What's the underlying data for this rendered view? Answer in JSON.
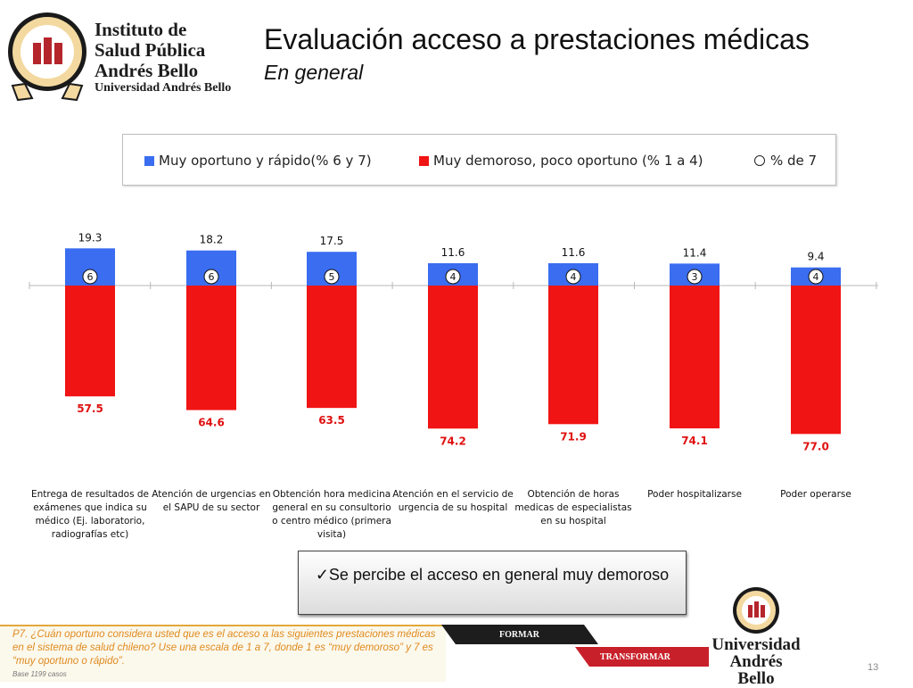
{
  "header": {
    "logo_lines": [
      "Instituto de",
      "Salud Pública",
      "Andrés Bello"
    ],
    "logo_subtitle": "Universidad Andrés Bello",
    "title": "Evaluación acceso a prestaciones médicas",
    "subtitle": "En general"
  },
  "legend": {
    "series_a": "Muy oportuno y rápido(% 6 y 7)",
    "series_b": "Muy demoroso, poco oportuno (% 1 a 4)",
    "series_c": "% de 7"
  },
  "colors": {
    "positive": "#3a6df0",
    "negative": "#f01414",
    "neg_label": "#e01010"
  },
  "chart_data": {
    "type": "bar",
    "categories": [
      "Entrega de resultados de exámenes que indica su médico (Ej. laboratorio, radiografías etc)",
      "Atención de urgencias en el SAPU de su sector",
      "Obtención hora medicina general en su consultorio o centro médico (primera visita)",
      "Atención en el servicio de urgencia de su hospital",
      "Obtención de horas medicas de especialistas en su hospital",
      "Poder hospitalizarse",
      "Poder operarse"
    ],
    "series": [
      {
        "name": "Muy oportuno y rápido(% 6 y 7)",
        "values": [
          19.3,
          18.2,
          17.5,
          11.6,
          11.6,
          11.4,
          9.4
        ]
      },
      {
        "name": "Muy demoroso, poco oportuno (% 1 a 4)",
        "values": [
          57.5,
          64.6,
          63.5,
          74.2,
          71.9,
          74.1,
          77.0
        ]
      },
      {
        "name": "% de 7",
        "values": [
          6,
          6,
          5,
          4,
          4,
          3,
          4
        ]
      }
    ],
    "title": "Evaluación acceso a prestaciones médicas",
    "subtitle": "En general",
    "legend_position": "top",
    "grid": false
  },
  "callout": {
    "text": "✓Se percibe el acceso en general muy demoroso"
  },
  "footer": {
    "question": "P7. ¿Cuán oportuno considera usted que es el acceso a las siguientes prestaciones médicas en el sistema de salud chileno? Use una escala de 1 a 7, donde 1 es “muy demoroso” y 7 es “muy oportuno o rápido”.",
    "base": "Base 1199 casos",
    "ribbon_1": "FORMAR",
    "ribbon_2": "TRANSFORMAR",
    "university_lines": [
      "Universidad",
      "Andrés Bello"
    ],
    "page_number": "13"
  }
}
